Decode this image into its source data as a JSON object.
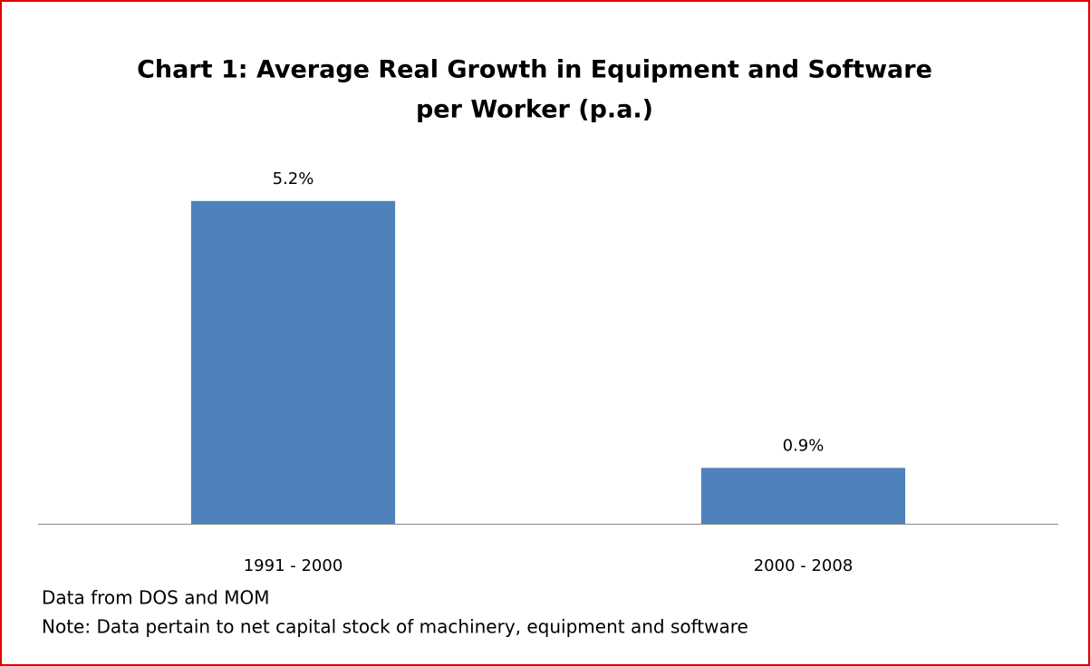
{
  "chart_data": {
    "type": "bar",
    "title": [
      "Chart 1: Average Real Growth in Equipment and Software",
      "per Worker (p.a.)"
    ],
    "categories": [
      "1991 - 2000",
      "2000 - 2008"
    ],
    "values": [
      5.2,
      0.9
    ],
    "value_labels": [
      "5.2%",
      "0.9%"
    ],
    "color": "#4f81bd",
    "ylim": [
      0,
      6
    ],
    "source": "Data from DOS and MOM",
    "note": "Note: Data pertain to net capital stock of machinery, equipment and software"
  }
}
